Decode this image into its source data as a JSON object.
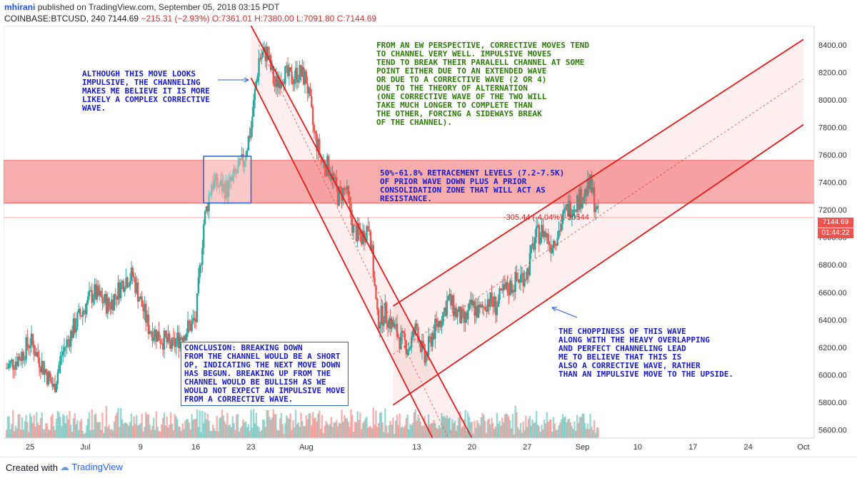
{
  "header": {
    "author": "mhirani",
    "published": "published on TradingView.com, September 05, 2018 03:15 PDT",
    "symbol": "COINBASE:BTCUSD, 240",
    "last": "7144.69",
    "change": "−215.31 (−2.93%)",
    "ohlc": "O:7361.01 H:7380.00 L:7091.80 C:7144.69"
  },
  "footer": {
    "created_with": "Created with",
    "brand": "TradingView"
  },
  "colors": {
    "up": "#26a69a",
    "down": "#ef5350",
    "channel": "#e31b1b",
    "zone": "#f26a6a",
    "annotation_blue": "#1a1acc",
    "annotation_green": "#2e7d0a"
  },
  "annotations": {
    "impulsive_note": "ALTHOUGH THIS MOVE LOOKS\nIMPULSIVE, THE CHANNELING\nMAKES ME BELIEVE IT IS MORE\nLIKELY A COMPLEX CORRECTIVE\nWAVE.",
    "ew_note": "FROM AN EW PERSPECTIVE, CORRECTIVE MOVES TEND\nTO CHANNEL VERY WELL. IMPULSIVE MOVES\nTEND TO BREAK THEIR PARALELL CHANNEL AT SOME\nPOINT EITHER DUE TO AN EXTENDED WAVE\nOR DUE TO A CORRECTIVE WAVE (2 OR 4)\nDUE TO THE THEORY OF ALTERNATION\n(ONE CORRECTIVE WAVE OF THE TWO WILL\nTAKE MUCH LONGER TO COMPLETE THAN\nTHE OTHER, FORCING A SIDEWAYS BREAK\nOF THE CHANNEL).",
    "retracement_note": "50%-61.8% RETRACEMENT LEVELS (7.2-7.5K)\nOF PRIOR WAVE DOWN PLUS A PRIOR\nCONSOLIDATION ZONE THAT WILL ACT AS\nRESISTANCE.",
    "conclusion_note": "CONCLUSION: BREAKING DOWN\nFROM THE CHANNEL WOULD BE A SHORT\nOP, INDICATING THE NEXT MOVE DOWN\nHAS BEGUN. BREAKING UP FROM THE\nCHANNEL WOULD BE BULLISH AS WE\nWOULD NOT EXPECT AN IMPULSIVE MOVE\nFROM A CORRECTIVE WAVE.",
    "choppiness_note": "THE CHOPPINESS OF THIS WAVE\nALONG WITH THE HEAVY OVERLAPPING\nAND PERFECT CHANNELING LEAD\nME TO BELIEVE THAT THIS IS\nALSO A CORRECTIVE WAVE, RATHER\nTHAN AN IMPULSIVE MOVE TO THE UPSIDE.",
    "measure_label": "-305.44 (-4.04%) -30544"
  },
  "chart_data": {
    "type": "candlestick",
    "symbol": "COINBASE:BTCUSD",
    "timeframe": "240",
    "x_ticks": [
      "25",
      "Jul",
      "9",
      "16",
      "23",
      "Aug",
      "13",
      "20",
      "27",
      "Sep",
      "10",
      "17",
      "24",
      "Oct"
    ],
    "x_tick_dates": [
      "2018-06-25",
      "2018-07-02",
      "2018-07-09",
      "2018-07-16",
      "2018-07-23",
      "2018-07-30",
      "2018-08-13",
      "2018-08-20",
      "2018-08-27",
      "2018-09-03",
      "2018-09-10",
      "2018-09-17",
      "2018-09-24",
      "2018-10-01"
    ],
    "y_ticks": [
      5600,
      5800,
      6000,
      6200,
      6400,
      6600,
      6800,
      7000,
      7200,
      7400,
      7600,
      7800,
      8000,
      8200,
      8400
    ],
    "y_range": [
      5540,
      8540
    ],
    "last_price": "7144.69",
    "countdown": "01:44:22",
    "price_path": [
      [
        "2018-06-22",
        6050
      ],
      [
        "2018-06-24",
        6150
      ],
      [
        "2018-06-25",
        6250
      ],
      [
        "2018-06-28",
        5900
      ],
      [
        "2018-06-29",
        6150
      ],
      [
        "2018-07-01",
        6400
      ],
      [
        "2018-07-03",
        6600
      ],
      [
        "2018-07-05",
        6500
      ],
      [
        "2018-07-07",
        6700
      ],
      [
        "2018-07-08",
        6720
      ],
      [
        "2018-07-10",
        6350
      ],
      [
        "2018-07-11",
        6300
      ],
      [
        "2018-07-13",
        6200
      ],
      [
        "2018-07-14",
        6280
      ],
      [
        "2018-07-16",
        6400
      ],
      [
        "2018-07-17",
        7100
      ],
      [
        "2018-07-18",
        7400
      ],
      [
        "2018-07-20",
        7350
      ],
      [
        "2018-07-21",
        7450
      ],
      [
        "2018-07-22",
        7550
      ],
      [
        "2018-07-23",
        7800
      ],
      [
        "2018-07-24",
        8300
      ],
      [
        "2018-07-25",
        8350
      ],
      [
        "2018-07-26",
        8100
      ],
      [
        "2018-07-27",
        8200
      ],
      [
        "2018-07-28",
        8150
      ],
      [
        "2018-07-29",
        8200
      ],
      [
        "2018-07-30",
        8150
      ],
      [
        "2018-07-31",
        7750
      ],
      [
        "2018-08-01",
        7550
      ],
      [
        "2018-08-02",
        7500
      ],
      [
        "2018-08-03",
        7300
      ],
      [
        "2018-08-04",
        7350
      ],
      [
        "2018-08-05",
        7050
      ],
      [
        "2018-08-06",
        7000
      ],
      [
        "2018-08-07",
        7100
      ],
      [
        "2018-08-08",
        6400
      ],
      [
        "2018-08-09",
        6450
      ],
      [
        "2018-08-10",
        6350
      ],
      [
        "2018-08-11",
        6250
      ],
      [
        "2018-08-12",
        6200
      ],
      [
        "2018-08-13",
        6350
      ],
      [
        "2018-08-14",
        6100
      ],
      [
        "2018-08-15",
        6300
      ],
      [
        "2018-08-16",
        6400
      ],
      [
        "2018-08-17",
        6550
      ],
      [
        "2018-08-18",
        6450
      ],
      [
        "2018-08-19",
        6380
      ],
      [
        "2018-08-20",
        6500
      ],
      [
        "2018-08-21",
        6450
      ],
      [
        "2018-08-22",
        6550
      ],
      [
        "2018-08-23",
        6500
      ],
      [
        "2018-08-24",
        6600
      ],
      [
        "2018-08-25",
        6650
      ],
      [
        "2018-08-26",
        6700
      ],
      [
        "2018-08-27",
        6750
      ],
      [
        "2018-08-28",
        7000
      ],
      [
        "2018-08-29",
        7050
      ],
      [
        "2018-08-30",
        6950
      ],
      [
        "2018-08-31",
        7050
      ],
      [
        "2018-09-01",
        7200
      ],
      [
        "2018-09-02",
        7250
      ],
      [
        "2018-09-03",
        7300
      ],
      [
        "2018-09-04",
        7380
      ],
      [
        "2018-09-05",
        7145
      ]
    ],
    "descending_channel": {
      "upper": [
        [
          "2018-07-23",
          8540
        ],
        [
          "2018-08-20",
          5540
        ]
      ],
      "lower": [
        [
          "2018-07-23",
          8160
        ],
        [
          "2018-08-15",
          5540
        ]
      ],
      "mid": [
        [
          "2018-07-24",
          8400
        ],
        [
          "2018-08-17",
          5540
        ]
      ]
    },
    "ascending_channel": {
      "upper": [
        [
          "2018-08-10",
          6500
        ],
        [
          "2018-10-01",
          8440
        ]
      ],
      "lower": [
        [
          "2018-08-10",
          5780
        ],
        [
          "2018-10-01",
          7820
        ]
      ],
      "mid": [
        [
          "2018-08-10",
          6150
        ],
        [
          "2018-10-01",
          8150
        ]
      ]
    },
    "resistance_zone": [
      7250,
      7560
    ],
    "consolidation_box": {
      "start": "2018-07-17",
      "end": "2018-07-23",
      "low": 7250,
      "high": 7590
    }
  }
}
